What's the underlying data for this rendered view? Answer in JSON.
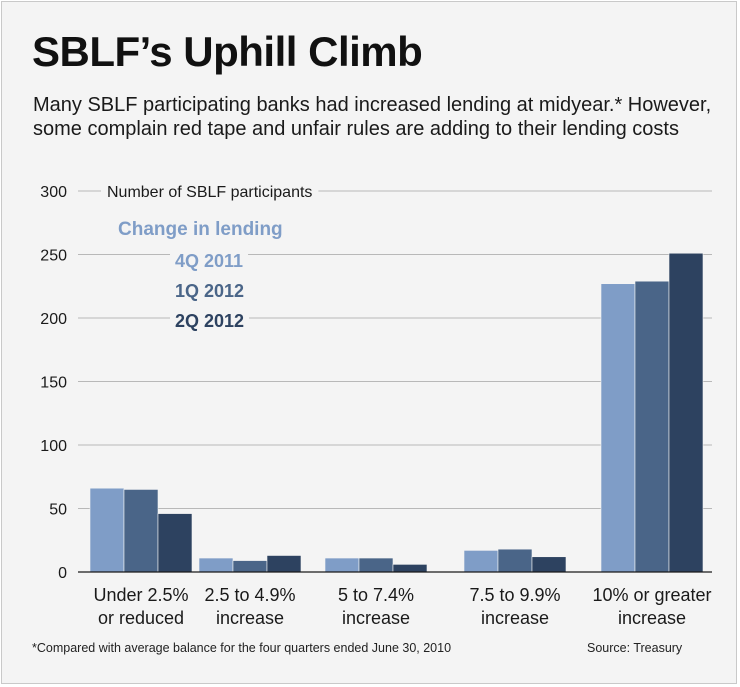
{
  "title": "SBLF’s Uphill Climb",
  "subtitle": "Many SBLF participating banks had increased lending at midyear.* However, some complain red tape and unfair rules are adding to their lending costs",
  "footnote": "*Compared with average balance for the four quarters ended June 30, 2010",
  "source": "Source: Treasury",
  "colors": {
    "4Q 2011": "#7f9dc7",
    "1Q 2012": "#4a6588",
    "2Q 2012": "#2d4260",
    "legend_title": "#7f9dc7",
    "grid": "#b8b8b8"
  },
  "chart_data": {
    "type": "bar",
    "ylabel": "Number of SBLF participants",
    "legend_title": "Change in lending",
    "categories": [
      [
        "Under 2.5%",
        "or reduced"
      ],
      [
        "2.5 to 4.9%",
        "increase"
      ],
      [
        "5 to 7.4%",
        "increase"
      ],
      [
        "7.5 to 9.9%",
        "increase"
      ],
      [
        "10% or greater",
        "increase"
      ]
    ],
    "series": [
      {
        "name": "4Q 2011",
        "values": [
          66,
          11,
          11,
          17,
          227
        ]
      },
      {
        "name": "1Q 2012",
        "values": [
          65,
          9,
          11,
          18,
          229
        ]
      },
      {
        "name": "2Q 2012",
        "values": [
          46,
          13,
          6,
          12,
          251
        ]
      }
    ],
    "yticks": [
      0,
      50,
      100,
      150,
      200,
      250,
      300
    ],
    "ylim": [
      0,
      300
    ],
    "grid": true,
    "legend_position": "top-left"
  }
}
